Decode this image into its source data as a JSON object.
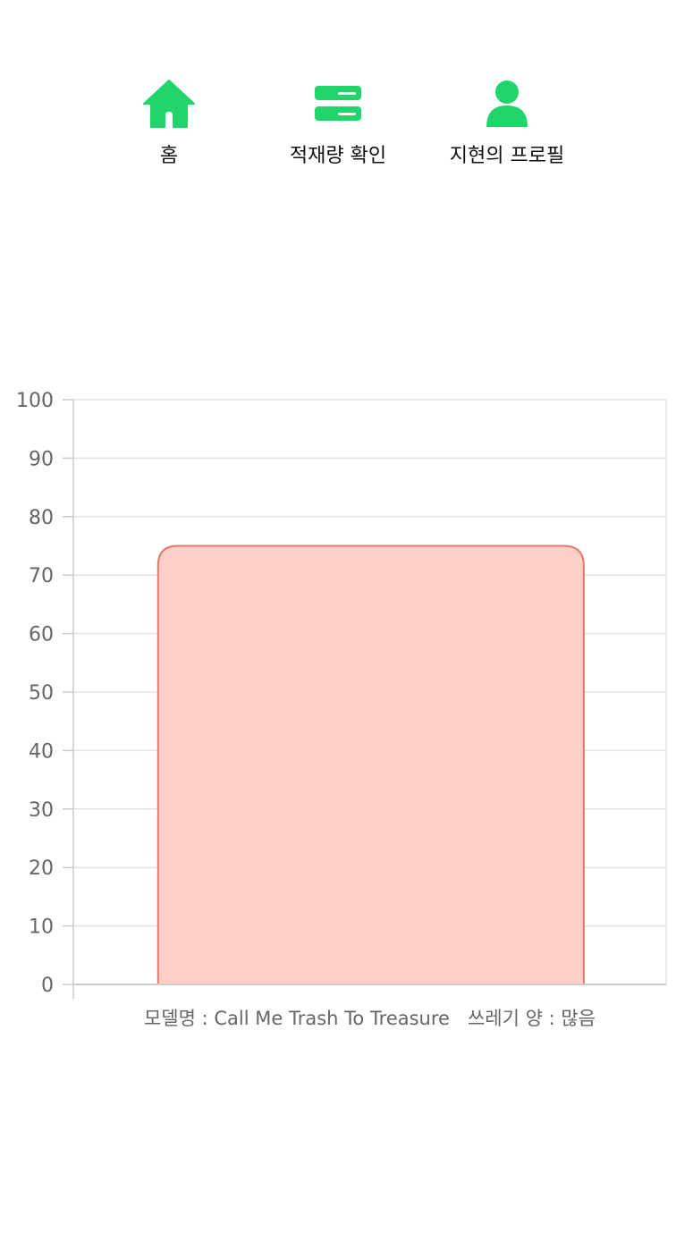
{
  "nav": {
    "items": [
      {
        "label": "홈",
        "icon": "home-icon"
      },
      {
        "label": "적재량 확인",
        "icon": "server-icon"
      },
      {
        "label": "지현의 프로필",
        "icon": "user-icon"
      }
    ],
    "accent_color": "#21d56a"
  },
  "chart_data": {
    "type": "bar",
    "categories": [
      "모델명 : Call Me Trash To Treasure   쓰레기 양 : 많음"
    ],
    "values": [
      75
    ],
    "ylim": [
      0,
      100
    ],
    "yticks": [
      0,
      10,
      20,
      30,
      40,
      50,
      60,
      70,
      80,
      90,
      100
    ],
    "grid": true,
    "bar_fill": "#ffcfc8",
    "bar_border": "#e07a6a",
    "title": "",
    "xlabel": "",
    "ylabel": ""
  }
}
